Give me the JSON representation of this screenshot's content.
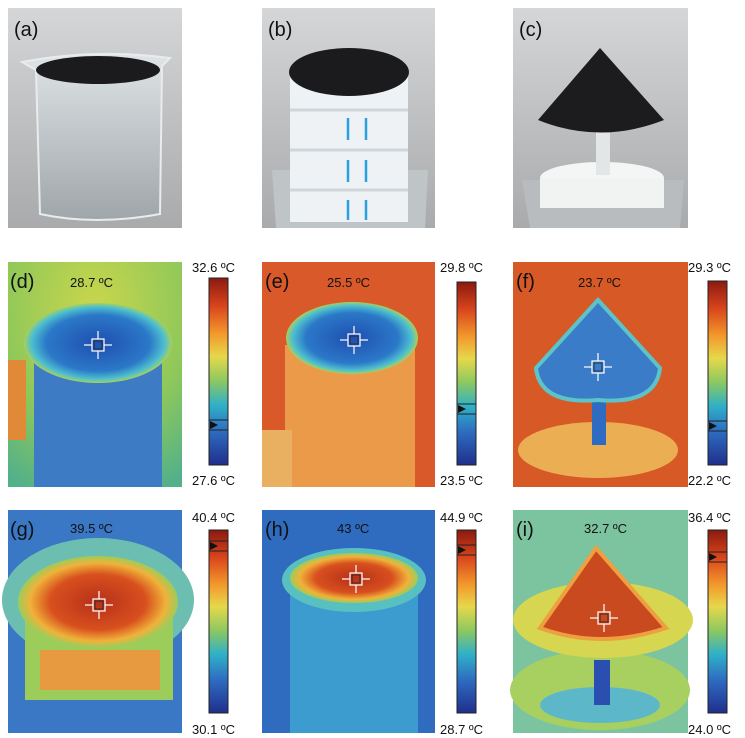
{
  "panels": [
    {
      "label": "(a)"
    },
    {
      "label": "(b)"
    },
    {
      "label": "(c)"
    },
    {
      "label": "(d)",
      "spot_temp": "28.7 ºC",
      "scale_max": "32.6 ºC",
      "scale_min": "27.6 ºC"
    },
    {
      "label": "(e)",
      "spot_temp": "25.5 ºC",
      "scale_max": "29.8 ºC",
      "scale_min": "23.5 ºC"
    },
    {
      "label": "(f)",
      "spot_temp": "23.7 ºC",
      "scale_max": "29.3 ºC",
      "scale_min": "22.2 ºC"
    },
    {
      "label": "(g)",
      "spot_temp": "39.5 ºC",
      "scale_max": "40.4 ºC",
      "scale_min": "30.1 ºC"
    },
    {
      "label": "(h)",
      "spot_temp": "43 ºC",
      "scale_max": "44.9 ºC",
      "scale_min": "28.7 ºC"
    },
    {
      "label": "(i)",
      "spot_temp": "32.7 ºC",
      "scale_max": "36.4 ºC",
      "scale_min": "24.0 ºC"
    }
  ]
}
